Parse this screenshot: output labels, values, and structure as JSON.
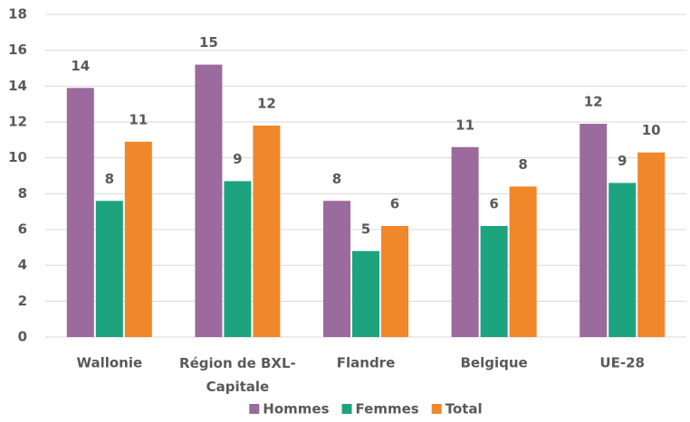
{
  "chart_data": {
    "type": "bar",
    "categories": [
      "Wallonie",
      "Région de BXL-Capitale",
      "Flandre",
      "Belgique",
      "UE-28"
    ],
    "series": [
      {
        "name": "Hommes",
        "color": "#9a6b9c",
        "values": [
          13.9,
          15.2,
          7.6,
          10.6,
          11.9
        ],
        "value_labels": [
          "14",
          "15",
          "8",
          "11",
          "12"
        ]
      },
      {
        "name": "Femmes",
        "color": "#1ea37f",
        "values": [
          7.6,
          8.7,
          4.8,
          6.2,
          8.6
        ],
        "value_labels": [
          "8",
          "9",
          "5",
          "6",
          "9"
        ]
      },
      {
        "name": "Total",
        "color": "#f0872a",
        "values": [
          10.9,
          11.8,
          6.2,
          8.4,
          10.3
        ],
        "value_labels": [
          "11",
          "12",
          "6",
          "8",
          "10"
        ]
      }
    ],
    "ylim": [
      0,
      18
    ],
    "yticks": [
      0,
      2,
      4,
      6,
      8,
      10,
      12,
      14,
      16,
      18
    ],
    "grid": true,
    "legend": "bottom"
  }
}
